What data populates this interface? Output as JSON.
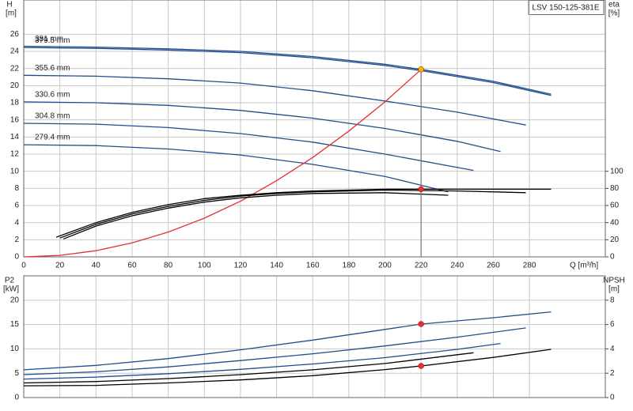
{
  "chart_data": [
    {
      "type": "line",
      "model_label": "LSV 150-125-381E",
      "ylabel": "H",
      "yunit": "[m]",
      "y2label": "eta",
      "y2unit": "[%]",
      "xlabel": "Q [m³/h]",
      "xlim": [
        0,
        322
      ],
      "xticks": [
        0,
        20,
        40,
        60,
        80,
        100,
        120,
        140,
        160,
        180,
        200,
        220,
        240,
        260,
        280
      ],
      "ylim": [
        0,
        30
      ],
      "yticks": [
        0,
        2,
        4,
        6,
        8,
        10,
        12,
        14,
        16,
        18,
        20,
        22,
        24,
        26
      ],
      "y2lim": [
        0,
        300
      ],
      "y2ticks": [
        0,
        20,
        40,
        60,
        80,
        100
      ],
      "grid": true,
      "series": [
        {
          "name": "381 mm",
          "color": "#1f4e8c",
          "x": [
            0,
            40,
            80,
            120,
            160,
            200,
            220,
            260,
            292
          ],
          "y": [
            24.6,
            24.5,
            24.3,
            24.0,
            23.4,
            22.5,
            21.9,
            20.5,
            19.0
          ]
        },
        {
          "name": "379.5 mm",
          "color": "#1f4e8c",
          "x": [
            0,
            40,
            80,
            120,
            160,
            200,
            220,
            260,
            292
          ],
          "y": [
            24.45,
            24.35,
            24.15,
            23.85,
            23.25,
            22.35,
            21.75,
            20.35,
            18.85
          ]
        },
        {
          "name": "355.6 mm",
          "color": "#1f4e8c",
          "x": [
            0,
            40,
            80,
            120,
            160,
            200,
            240,
            278
          ],
          "y": [
            21.2,
            21.1,
            20.8,
            20.3,
            19.4,
            18.2,
            16.9,
            15.4
          ]
        },
        {
          "name": "330.6 mm",
          "color": "#1f4e8c",
          "x": [
            0,
            40,
            80,
            120,
            160,
            200,
            240,
            264
          ],
          "y": [
            18.1,
            18.0,
            17.7,
            17.1,
            16.2,
            15.0,
            13.5,
            12.3
          ]
        },
        {
          "name": "304.8 mm",
          "color": "#1f4e8c",
          "x": [
            0,
            40,
            80,
            120,
            160,
            200,
            249
          ],
          "y": [
            15.6,
            15.5,
            15.1,
            14.4,
            13.4,
            12.0,
            10.1
          ]
        },
        {
          "name": "279.4 mm",
          "color": "#1f4e8c",
          "x": [
            0,
            40,
            80,
            120,
            160,
            200,
            235
          ],
          "y": [
            13.1,
            13.0,
            12.6,
            11.9,
            10.8,
            9.4,
            7.6
          ]
        },
        {
          "color": "#e53030",
          "x": [
            0,
            20,
            40,
            60,
            80,
            100,
            120,
            140,
            160,
            180,
            200,
            220
          ],
          "y": [
            0,
            0.18,
            0.72,
            1.63,
            2.9,
            4.52,
            6.5,
            8.9,
            11.6,
            14.7,
            18.1,
            21.9
          ]
        },
        {
          "color": "#000000",
          "axis": "y2",
          "x": [
            18,
            40,
            60,
            80,
            100,
            120,
            140,
            160,
            200,
            220,
            260,
            292
          ],
          "y": [
            23,
            40,
            52,
            61,
            68,
            72,
            75,
            77,
            79,
            79,
            79,
            79
          ]
        },
        {
          "color": "#000000",
          "axis": "y2",
          "x": [
            20,
            40,
            60,
            80,
            100,
            120,
            140,
            160,
            200,
            240,
            278
          ],
          "y": [
            22,
            38,
            50,
            59,
            66,
            71,
            74,
            76,
            78,
            77,
            75
          ]
        },
        {
          "color": "#000000",
          "axis": "y2",
          "x": [
            22,
            40,
            60,
            80,
            100,
            120,
            140,
            160,
            200,
            235
          ],
          "y": [
            21,
            36,
            48,
            57,
            64,
            69,
            72,
            74,
            75,
            72
          ]
        }
      ],
      "points": [
        {
          "x": 220,
          "y": 21.9,
          "color": "#f5b800"
        },
        {
          "x": 220,
          "y": 79,
          "axis": "y2",
          "color": "#e53030"
        }
      ]
    },
    {
      "type": "line",
      "ylabel": "P2",
      "yunit": "[kW]",
      "y2label": "NPSH",
      "y2unit": "[m]",
      "xlim": [
        0,
        322
      ],
      "xticks": [
        0,
        20,
        40,
        60,
        80,
        100,
        120,
        140,
        160,
        180,
        200,
        220,
        240,
        260,
        280
      ],
      "ylim": [
        0,
        25
      ],
      "yticks": [
        0,
        5,
        10,
        15,
        20
      ],
      "y2lim": [
        0,
        10
      ],
      "y2ticks": [
        0,
        2,
        4,
        6,
        8
      ],
      "grid": true,
      "series": [
        {
          "color": "#1f4e8c",
          "x": [
            0,
            40,
            80,
            120,
            160,
            200,
            220,
            260,
            292
          ],
          "y": [
            5.7,
            6.6,
            8.0,
            9.8,
            11.8,
            14.0,
            15.1,
            16.4,
            17.6
          ]
        },
        {
          "color": "#1f4e8c",
          "x": [
            0,
            40,
            80,
            120,
            160,
            200,
            240,
            278
          ],
          "y": [
            4.7,
            5.3,
            6.3,
            7.6,
            9.0,
            10.6,
            12.4,
            14.3
          ]
        },
        {
          "color": "#1f4e8c",
          "x": [
            0,
            40,
            80,
            120,
            160,
            200,
            240,
            264
          ],
          "y": [
            3.8,
            4.2,
            4.9,
            5.8,
            6.9,
            8.2,
            9.9,
            11.1
          ]
        },
        {
          "color": "#000000",
          "x": [
            0,
            40,
            80,
            120,
            160,
            200,
            249
          ],
          "y": [
            3.0,
            3.3,
            3.9,
            4.7,
            5.7,
            7.0,
            9.2
          ]
        },
        {
          "color": "#000000",
          "axis": "y2",
          "x": [
            0,
            40,
            80,
            120,
            160,
            200,
            220,
            260,
            292
          ],
          "y": [
            0.97,
            1.0,
            1.2,
            1.45,
            1.8,
            2.3,
            2.6,
            3.3,
            3.96
          ]
        }
      ],
      "points": [
        {
          "x": 220,
          "y": 15.1,
          "color": "#e53030"
        },
        {
          "x": 220,
          "y": 2.6,
          "axis": "y2",
          "color": "#e53030"
        }
      ]
    }
  ]
}
